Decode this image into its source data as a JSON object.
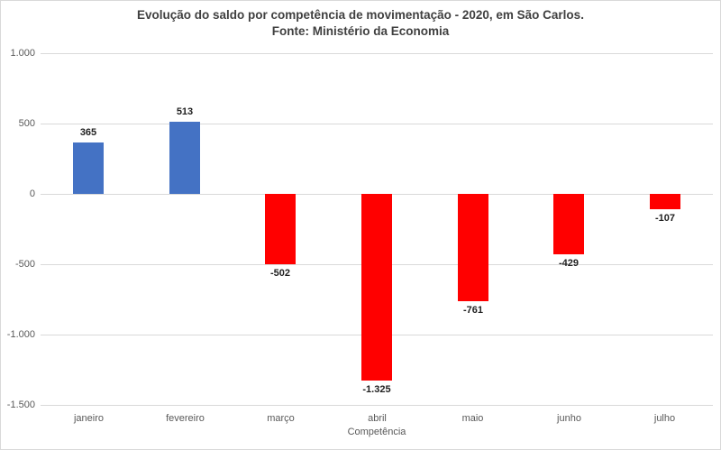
{
  "window": {
    "background": "#FFFFFF",
    "border_color": "#D9D9D9"
  },
  "chart_data": {
    "type": "bar",
    "title": "Evolução do saldo por competência de movimentação - 2020, em São Carlos.",
    "subtitle": "Fonte: Ministério da Economia",
    "xlabel": "Competência",
    "ylabel": "",
    "categories": [
      "janeiro",
      "fevereiro",
      "março",
      "abril",
      "maio",
      "junho",
      "julho"
    ],
    "values": [
      365,
      513,
      -502,
      -1325,
      -761,
      -429,
      -107
    ],
    "value_labels": [
      "365",
      "513",
      "-502",
      "-1.325",
      "-761",
      "-429",
      "-107"
    ],
    "ylim": [
      -1500,
      1000
    ],
    "y_ticks": [
      {
        "value": 1000,
        "label": "1.000"
      },
      {
        "value": 500,
        "label": "500"
      },
      {
        "value": 0,
        "label": "0"
      },
      {
        "value": -500,
        "label": "-500"
      },
      {
        "value": -1000,
        "label": "-1.000"
      },
      {
        "value": -1500,
        "label": "-1.500"
      }
    ],
    "grid": "horizontal",
    "legend": "none",
    "colors": {
      "positive": "#4472C4",
      "negative": "#FF0000",
      "grid": "#D9D9D9",
      "axis_text": "#595959",
      "title_text": "#404040",
      "data_label_text": "#1F1F1F"
    }
  }
}
